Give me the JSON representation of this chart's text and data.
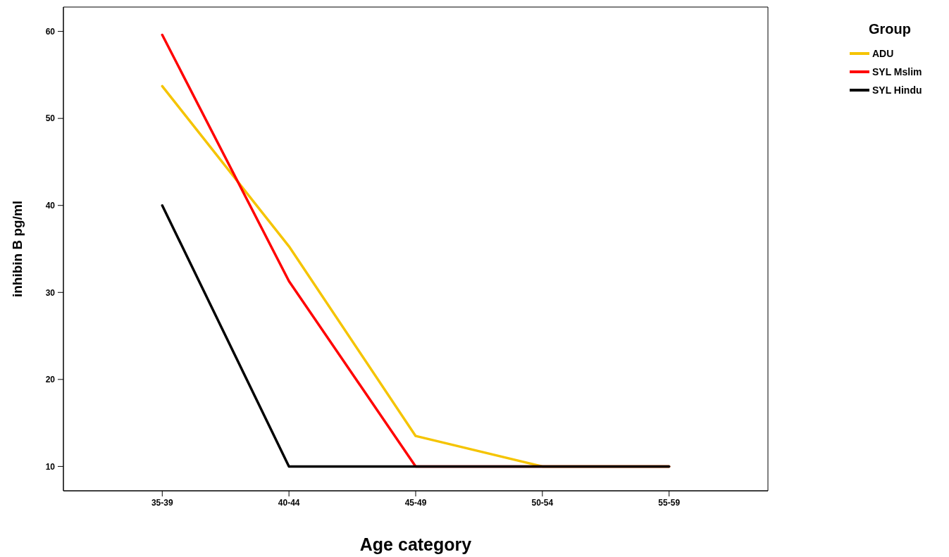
{
  "chart_data": {
    "type": "line",
    "xlabel": "Age category",
    "ylabel": "inhibin B pg/ml",
    "legend_title": "Group",
    "legend": "top right",
    "marker": "none",
    "line_style": "solid",
    "categories": [
      "35-39",
      "40-44",
      "45-49",
      "50-54",
      "55-59"
    ],
    "ylim": [
      7.2,
      62.8
    ],
    "yticks": [
      10,
      20,
      30,
      40,
      50,
      60
    ],
    "series": [
      {
        "name": "ADU",
        "color": "#f5c400",
        "values": [
          53.7,
          35.3,
          13.5,
          10,
          10
        ]
      },
      {
        "name": "SYL Mslim",
        "color": "#ff0000",
        "values": [
          59.6,
          31.3,
          10,
          10,
          10
        ]
      },
      {
        "name": "SYL Hindu",
        "color": "#000000",
        "values": [
          40,
          10,
          10,
          10,
          10
        ]
      }
    ]
  }
}
